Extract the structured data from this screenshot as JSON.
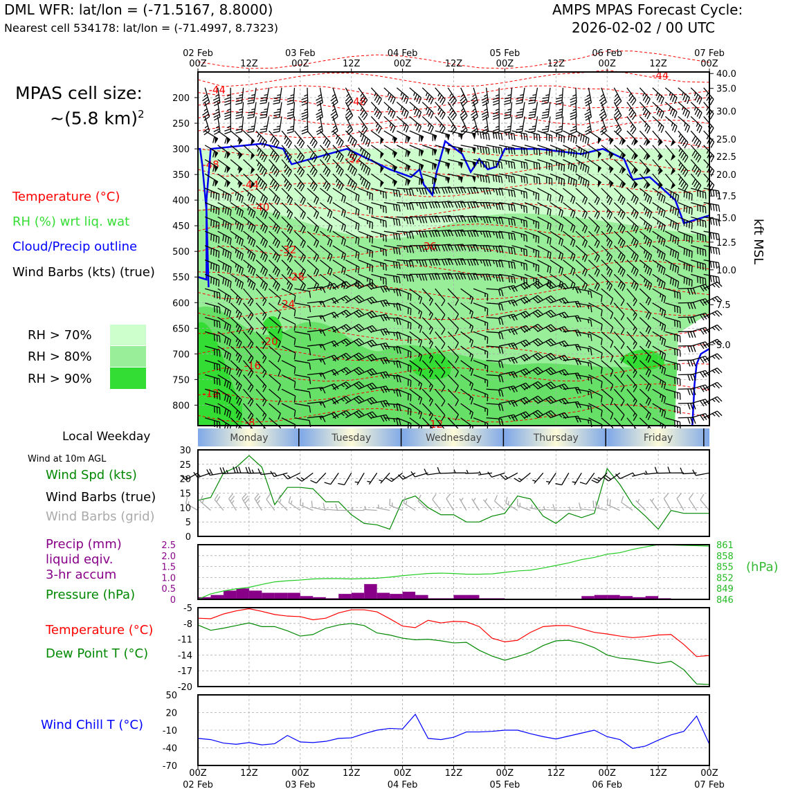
{
  "header": {
    "title_left": "DML WFR: lat/lon = (-71.5167, 8.8000)",
    "subtitle_left": "Nearest cell 534178: lat/lon = (-71.4997, 8.7323)",
    "title_right_1": "AMPS MPAS Forecast Cycle:",
    "title_right_2": "2026-02-02 / 00 UTC"
  },
  "cell_size": {
    "line1": "MPAS cell size:",
    "line2": "~(5.8 km)",
    "exp": "2"
  },
  "legend": {
    "temperature": "Temperature (°C)",
    "rh": "RH (%) wrt liq. wat",
    "cloud": "Cloud/Precip outline",
    "wind": "Wind Barbs (kts) (true)",
    "rh70": "RH > 70%",
    "rh80": "RH > 80%",
    "rh90": "RH > 90%",
    "rh_colors": [
      "#ccffcc",
      "#99ee99",
      "#33dd33"
    ]
  },
  "time_axis": {
    "top_dates": [
      "02 Feb",
      "03 Feb",
      "04 Feb",
      "05 Feb",
      "06 Feb",
      "07 Feb"
    ],
    "tick_labels": [
      "00Z",
      "12Z",
      "00Z",
      "12Z",
      "00Z",
      "12Z",
      "00Z",
      "12Z",
      "00Z",
      "12Z",
      "00Z"
    ],
    "hours": [
      0,
      12,
      24,
      36,
      48,
      60,
      72,
      84,
      96,
      108,
      120
    ]
  },
  "weekday": {
    "label": "Local Weekday",
    "days": [
      "Monday",
      "Tuesday",
      "Wednesday",
      "Thursday",
      "Friday"
    ]
  },
  "panel_labels": {
    "wind_10m": "Wind at 10m AGL",
    "wind_spd": "Wind Spd (kts)",
    "wind_barbs_true": "Wind Barbs (true)",
    "wind_barbs_grid": "Wind Barbs (grid)",
    "precip1": "Precip (mm)",
    "precip2": "liquid eqiv.",
    "precip3": "3-hr accum",
    "pressure": "Pressure (hPa)",
    "hpa_unit": "(hPa)",
    "temp": "Temperature (°C)",
    "dewpoint": "Dew Point T (°C)",
    "windchill": "Wind Chill T (°C)",
    "kft": "kft MSL"
  },
  "chart_data": [
    {
      "type": "heatmap",
      "title": "Time-height cross section",
      "x_hours": [
        0,
        120
      ],
      "pressure_ticks": [
        200,
        250,
        300,
        350,
        400,
        450,
        500,
        550,
        600,
        650,
        700,
        750,
        800
      ],
      "pressure_range": [
        150,
        840
      ],
      "kft_ticks": [
        "40.0",
        "35.0",
        "30.0",
        "25.0",
        "22.5",
        "20.0",
        "17.5",
        "15.0",
        "12.5",
        "10.0",
        "7.5",
        "5.0"
      ],
      "kft_pressures": [
        153,
        182,
        226,
        281,
        315,
        350,
        392,
        434,
        482,
        536,
        604,
        682
      ],
      "temp_labels": [
        {
          "t": "-44",
          "h": 4.5,
          "p": 185
        },
        {
          "t": "-44",
          "h": 108.5,
          "p": 157
        },
        {
          "t": "-48",
          "h": 37.5,
          "p": 208
        },
        {
          "t": "-48",
          "h": 3.0,
          "p": 331
        },
        {
          "t": "-52",
          "h": 36.5,
          "p": 319
        },
        {
          "t": "-44",
          "h": 12.3,
          "p": 370
        },
        {
          "t": "-40",
          "h": 14.8,
          "p": 414
        },
        {
          "t": "-32",
          "h": 21.1,
          "p": 497
        },
        {
          "t": "-36",
          "h": 54.0,
          "p": 490
        },
        {
          "t": "-28",
          "h": 23.0,
          "p": 550
        },
        {
          "t": "-24",
          "h": 20.8,
          "p": 603
        },
        {
          "t": "-20",
          "h": 16.8,
          "p": 676
        },
        {
          "t": "-16",
          "h": 12.8,
          "p": 723
        },
        {
          "t": "-12",
          "h": 3.0,
          "p": 777
        },
        {
          "t": "-8",
          "h": 12.2,
          "p": 834
        },
        {
          "t": "-12",
          "h": 55.5,
          "p": 837
        }
      ]
    },
    {
      "type": "line",
      "title": "Wind at 10m AGL",
      "ylim": [
        0,
        30
      ],
      "yticks": [
        0,
        5,
        10,
        15,
        20,
        25,
        30
      ],
      "x": [
        0,
        3,
        6,
        9,
        12,
        15,
        18,
        21,
        24,
        27,
        30,
        33,
        36,
        39,
        42,
        45,
        48,
        51,
        54,
        57,
        60,
        63,
        66,
        69,
        72,
        75,
        78,
        81,
        84,
        87,
        90,
        93,
        96,
        99,
        102,
        105,
        108,
        111,
        114,
        117,
        120
      ],
      "series": [
        {
          "name": "Wind Spd (kts)",
          "color": "#008800",
          "values": [
            12.5,
            13.5,
            22,
            24,
            28,
            24,
            11,
            17,
            17,
            16.5,
            12,
            12,
            7.5,
            4.5,
            4,
            2.5,
            12.5,
            14,
            10,
            7.5,
            7.5,
            5,
            5,
            7,
            8,
            14,
            13,
            7,
            4.5,
            8,
            6.5,
            8,
            23.5,
            18,
            11,
            7,
            2.5,
            9,
            8,
            8,
            8
          ]
        }
      ]
    },
    {
      "type": "bar",
      "title": "Precip / Pressure",
      "ylim": [
        0,
        2.5
      ],
      "yticks": [
        "0",
        "0.5",
        "1.0",
        "1.5",
        "2.0",
        "2.5"
      ],
      "pressure_ticks": [
        "846",
        "849",
        "852",
        "855",
        "858",
        "861"
      ],
      "pressure_range": [
        846,
        861
      ],
      "x_hours": [
        1.5,
        4.5,
        7.5,
        10.5,
        13.5,
        16.5,
        19.5,
        22.5,
        25.5,
        28.5,
        31.5,
        34.5,
        37.5,
        40.5,
        43.5,
        46.5,
        49.5,
        52.5,
        55.5,
        58.5,
        61.5,
        64.5,
        67.5,
        70.5,
        73.5,
        76.5,
        79.5,
        82.5,
        85.5,
        88.5,
        91.5,
        94.5,
        97.5,
        100.5,
        103.5,
        106.5,
        109.5,
        112.5,
        115.5,
        118.5
      ],
      "precip": [
        0.1,
        0.2,
        0.4,
        0.5,
        0.4,
        0.3,
        0.3,
        0.3,
        0.15,
        0.1,
        0.05,
        0.25,
        0.3,
        0.7,
        0.3,
        0.25,
        0.35,
        0.2,
        0.05,
        0.05,
        0.2,
        0.2,
        0.05,
        0.05,
        0.02,
        0.02,
        0,
        0.02,
        0,
        0.02,
        0.15,
        0.2,
        0.2,
        0.15,
        0.1,
        0.15,
        0.05,
        0,
        0,
        0
      ],
      "pressure_x": [
        0,
        3,
        6,
        9,
        12,
        15,
        18,
        21,
        24,
        27,
        30,
        33,
        36,
        39,
        42,
        45,
        48,
        51,
        54,
        57,
        60,
        63,
        66,
        69,
        72,
        75,
        78,
        81,
        84,
        87,
        90,
        93,
        96,
        99,
        102,
        105,
        108,
        111,
        114,
        117,
        120
      ],
      "pressure": [
        846,
        847.5,
        848.3,
        848.9,
        849.3,
        850.1,
        850.8,
        851.1,
        851.3,
        851.6,
        851.7,
        851.7,
        851.6,
        851.7,
        851.8,
        852.1,
        852.5,
        852.8,
        853.1,
        853.2,
        853.1,
        852.9,
        852.9,
        853.0,
        853.4,
        853.8,
        854.0,
        854.6,
        855.3,
        856.0,
        856.9,
        857.5,
        858.4,
        858.8,
        859.7,
        860.4,
        861.0,
        860.9,
        860.8,
        860.7,
        860.6
      ]
    },
    {
      "type": "line",
      "title": "Temperature / Dew Point",
      "ylim": [
        -20,
        -5
      ],
      "yticks": [
        "-5",
        "-8",
        "-11",
        "-14",
        "-17",
        "-20"
      ],
      "x": [
        0,
        3,
        6,
        9,
        12,
        15,
        18,
        21,
        24,
        27,
        30,
        33,
        36,
        39,
        42,
        45,
        48,
        51,
        54,
        57,
        60,
        63,
        66,
        69,
        72,
        75,
        78,
        81,
        84,
        87,
        90,
        93,
        96,
        99,
        102,
        105,
        108,
        111,
        114,
        117,
        120
      ],
      "series": [
        {
          "name": "Temperature (°C)",
          "color": "#ff0000",
          "values": [
            -7,
            -7.1,
            -6.2,
            -5.6,
            -5.2,
            -5.7,
            -6.3,
            -6.6,
            -6.7,
            -7.3,
            -7,
            -6.0,
            -5.4,
            -5.4,
            -5.8,
            -7.1,
            -8.5,
            -8.8,
            -7.4,
            -7.9,
            -7.6,
            -7.7,
            -8.6,
            -10.8,
            -11.5,
            -11.2,
            -9.7,
            -8.6,
            -8.4,
            -8.4,
            -9.0,
            -9.7,
            -10.0,
            -10.4,
            -10.7,
            -10.5,
            -10.2,
            -10.1,
            -12.0,
            -14.3,
            -14.1
          ]
        },
        {
          "name": "Dew Point T (°C)",
          "color": "#008800",
          "values": [
            -8.3,
            -9.3,
            -8.9,
            -8.4,
            -7.9,
            -8.6,
            -8.6,
            -9.4,
            -10.4,
            -10.1,
            -8.9,
            -8.3,
            -8.0,
            -8.4,
            -9.8,
            -10.2,
            -10.8,
            -11.1,
            -11.0,
            -11.3,
            -11.7,
            -11.6,
            -13.1,
            -14.2,
            -15.0,
            -14.3,
            -13.5,
            -12.2,
            -11.3,
            -11.2,
            -11.7,
            -12.6,
            -14.0,
            -14.6,
            -14.8,
            -15.2,
            -15.6,
            -15.2,
            -16.8,
            -19.5,
            -19.6
          ]
        }
      ]
    },
    {
      "type": "line",
      "title": "Wind Chill",
      "ylim": [
        -70,
        50
      ],
      "yticks": [
        "50",
        "20",
        "-10",
        "-40",
        "-70"
      ],
      "x": [
        0,
        3,
        6,
        9,
        12,
        15,
        18,
        21,
        24,
        27,
        30,
        33,
        36,
        39,
        42,
        45,
        48,
        51,
        54,
        57,
        60,
        63,
        66,
        69,
        72,
        75,
        78,
        81,
        84,
        87,
        90,
        93,
        96,
        99,
        102,
        105,
        108,
        111,
        114,
        117,
        120
      ],
      "series": [
        {
          "name": "Wind Chill T (°C)",
          "color": "#0000ff",
          "values": [
            -24,
            -26,
            -32,
            -34,
            -31,
            -35,
            -33,
            -19,
            -30,
            -31,
            -29,
            -24,
            -23,
            -16,
            -10,
            -7,
            -8,
            17,
            -24,
            -26,
            -22,
            -13,
            -13,
            -12,
            -10,
            -10,
            -16,
            -21,
            -25,
            -20,
            -15,
            -10,
            -21,
            -26,
            -41,
            -37,
            -27,
            -18,
            -12,
            14,
            -34
          ]
        }
      ]
    }
  ]
}
